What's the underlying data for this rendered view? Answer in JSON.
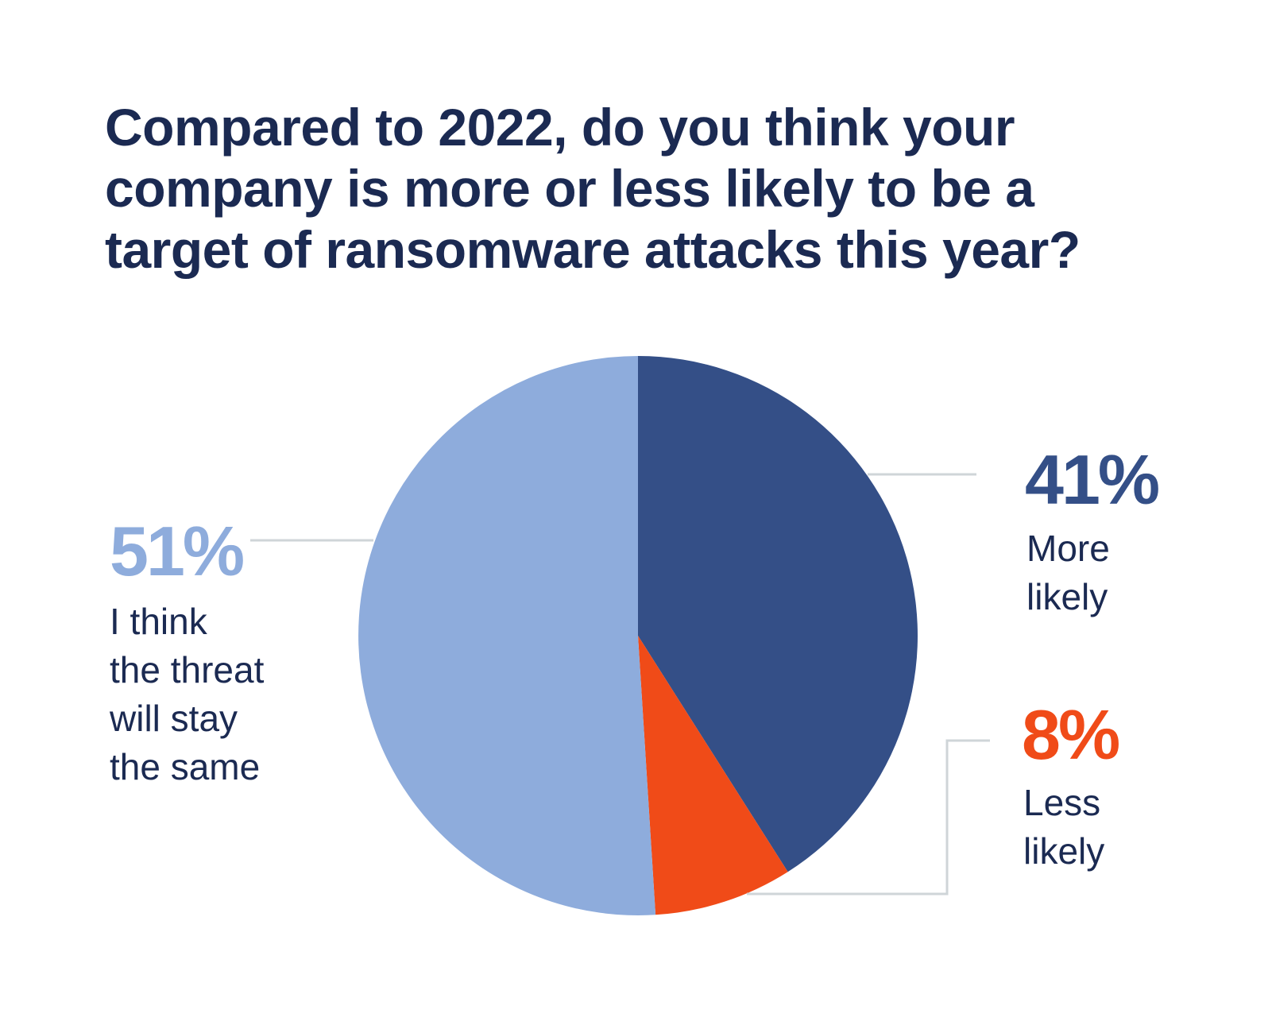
{
  "chart_data": {
    "type": "pie",
    "title_lines": [
      "Compared to 2022, do you think your",
      "company is more or less likely to be a",
      "target of ransomware attacks this year?"
    ],
    "slices": [
      {
        "label": "More likely",
        "label_lines": [
          "More",
          "likely"
        ],
        "value": 41,
        "display": "41%",
        "color": "#344f87"
      },
      {
        "label": "Less likely",
        "label_lines": [
          "Less",
          "likely"
        ],
        "value": 8,
        "display": "8%",
        "color": "#f04b18"
      },
      {
        "label": "I think the threat will stay the same",
        "label_lines": [
          "I think",
          "the threat",
          "will stay",
          "the same"
        ],
        "value": 51,
        "display": "51%",
        "color": "#8eacdc"
      }
    ],
    "start": "12 o'clock",
    "direction": "clockwise",
    "leader_color": "#cfd5d8"
  }
}
